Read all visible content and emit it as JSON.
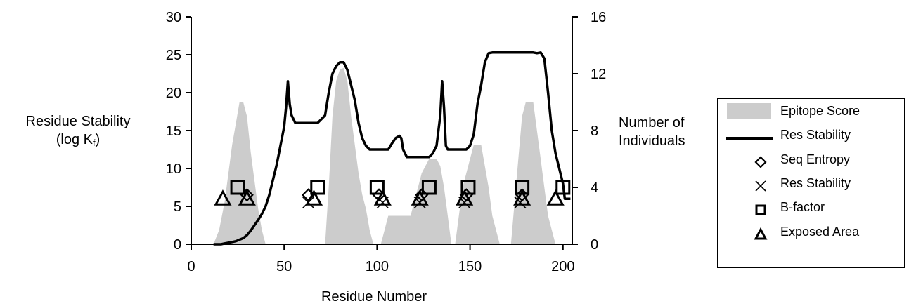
{
  "y_left_title_line1": "Residue Stability",
  "y_left_title_line2": "(log K",
  "y_left_title_sub": "f",
  "y_left_title_end": ")",
  "y_right_title_line1": "Number of",
  "y_right_title_line2": "Individuals",
  "chart_data": {
    "type": "line",
    "xlabel": "Residue Number",
    "x_ticks": [
      0,
      50,
      100,
      150,
      200
    ],
    "y_left_ticks": [
      0,
      5,
      10,
      15,
      20,
      25,
      30
    ],
    "y_right_ticks": [
      0,
      4,
      8,
      12,
      16
    ],
    "xlim": [
      0,
      205
    ],
    "ylim_left": [
      0,
      30
    ],
    "ylim_right": [
      0,
      16
    ],
    "legend_position": "right",
    "colors": {
      "epitope": "#cccccc",
      "line": "#000000"
    },
    "series": [
      {
        "name": "Epitope Score",
        "kind": "area",
        "axis": "right",
        "points": [
          [
            12,
            0
          ],
          [
            15,
            1
          ],
          [
            18,
            3
          ],
          [
            20,
            5
          ],
          [
            22,
            7
          ],
          [
            24,
            8.5
          ],
          [
            26,
            10
          ],
          [
            28,
            10
          ],
          [
            30,
            9
          ],
          [
            32,
            6.5
          ],
          [
            34,
            4.5
          ],
          [
            36,
            2.5
          ],
          [
            38,
            1
          ],
          [
            40,
            0
          ],
          [
            72,
            0
          ],
          [
            74,
            4
          ],
          [
            76,
            9
          ],
          [
            78,
            11.5
          ],
          [
            80,
            12.3
          ],
          [
            82,
            12.4
          ],
          [
            84,
            11.5
          ],
          [
            86,
            9
          ],
          [
            88,
            7
          ],
          [
            90,
            5
          ],
          [
            92,
            3.5
          ],
          [
            94,
            2.5
          ],
          [
            96,
            1
          ],
          [
            98,
            0
          ],
          [
            102,
            0
          ],
          [
            104,
            1
          ],
          [
            106,
            2
          ],
          [
            110,
            2
          ],
          [
            114,
            2
          ],
          [
            118,
            2
          ],
          [
            120,
            3
          ],
          [
            122,
            4
          ],
          [
            124,
            5
          ],
          [
            126,
            5.5
          ],
          [
            128,
            6
          ],
          [
            130,
            6
          ],
          [
            132,
            6
          ],
          [
            134,
            5.5
          ],
          [
            136,
            4
          ],
          [
            138,
            2
          ],
          [
            140,
            0
          ],
          [
            142,
            0
          ],
          [
            144,
            2
          ],
          [
            146,
            4
          ],
          [
            148,
            5
          ],
          [
            150,
            6
          ],
          [
            152,
            7
          ],
          [
            154,
            7
          ],
          [
            156,
            7
          ],
          [
            158,
            5.5
          ],
          [
            160,
            4
          ],
          [
            162,
            2
          ],
          [
            164,
            1
          ],
          [
            166,
            0
          ],
          [
            172,
            0
          ],
          [
            174,
            3
          ],
          [
            176,
            6
          ],
          [
            178,
            9
          ],
          [
            180,
            10
          ],
          [
            182,
            10
          ],
          [
            184,
            10
          ],
          [
            186,
            8
          ],
          [
            188,
            6
          ],
          [
            190,
            4
          ],
          [
            192,
            2
          ],
          [
            194,
            1
          ],
          [
            196,
            0
          ]
        ]
      },
      {
        "name": "Res Stability",
        "kind": "line",
        "axis": "left",
        "points": [
          [
            12,
            0
          ],
          [
            16,
            0
          ],
          [
            18,
            0.1
          ],
          [
            20,
            0.2
          ],
          [
            22,
            0.3
          ],
          [
            24,
            0.4
          ],
          [
            26,
            0.6
          ],
          [
            28,
            0.8
          ],
          [
            30,
            1.2
          ],
          [
            32,
            1.8
          ],
          [
            34,
            2.5
          ],
          [
            36,
            3.2
          ],
          [
            38,
            4
          ],
          [
            40,
            5
          ],
          [
            42,
            6.5
          ],
          [
            44,
            8.5
          ],
          [
            46,
            10.5
          ],
          [
            48,
            13
          ],
          [
            50,
            15.5
          ],
          [
            51,
            18
          ],
          [
            52,
            21.5
          ],
          [
            53,
            18.5
          ],
          [
            54,
            17
          ],
          [
            56,
            16
          ],
          [
            60,
            16
          ],
          [
            64,
            16
          ],
          [
            68,
            16
          ],
          [
            70,
            16.5
          ],
          [
            72,
            17
          ],
          [
            74,
            20
          ],
          [
            76,
            22.5
          ],
          [
            78,
            23.5
          ],
          [
            80,
            24
          ],
          [
            82,
            24
          ],
          [
            84,
            23
          ],
          [
            86,
            21
          ],
          [
            88,
            19
          ],
          [
            90,
            16
          ],
          [
            92,
            14
          ],
          [
            94,
            13
          ],
          [
            96,
            12.5
          ],
          [
            100,
            12.5
          ],
          [
            104,
            12.5
          ],
          [
            106,
            12.5
          ],
          [
            108,
            13.3
          ],
          [
            110,
            14
          ],
          [
            112,
            14.3
          ],
          [
            113,
            14
          ],
          [
            114,
            12.5
          ],
          [
            116,
            11.5
          ],
          [
            118,
            11.5
          ],
          [
            122,
            11.5
          ],
          [
            126,
            11.5
          ],
          [
            128,
            11.5
          ],
          [
            130,
            12
          ],
          [
            132,
            13
          ],
          [
            134,
            17
          ],
          [
            135,
            21.5
          ],
          [
            136,
            18
          ],
          [
            137,
            13
          ],
          [
            138,
            12.5
          ],
          [
            140,
            12.5
          ],
          [
            144,
            12.5
          ],
          [
            148,
            12.5
          ],
          [
            150,
            13
          ],
          [
            152,
            14.5
          ],
          [
            154,
            18.5
          ],
          [
            156,
            21
          ],
          [
            158,
            24
          ],
          [
            160,
            25.2
          ],
          [
            162,
            25.3
          ],
          [
            166,
            25.3
          ],
          [
            172,
            25.3
          ],
          [
            178,
            25.3
          ],
          [
            184,
            25.3
          ],
          [
            186,
            25.2
          ],
          [
            188,
            25.3
          ],
          [
            190,
            24.5
          ],
          [
            192,
            20
          ],
          [
            194,
            15
          ],
          [
            196,
            12
          ],
          [
            198,
            10
          ],
          [
            200,
            8
          ],
          [
            201,
            6
          ],
          [
            204,
            6
          ]
        ]
      },
      {
        "name": "Seq Entropy",
        "kind": "scatter",
        "marker": "diamond",
        "axis": "left",
        "x": [
          30,
          63,
          101,
          124,
          148,
          178
        ],
        "y": [
          6.5,
          6.5,
          6.5,
          6.5,
          6.5,
          6.5
        ]
      },
      {
        "name": "Res Stability",
        "kind": "scatter",
        "marker": "x",
        "axis": "left",
        "x": [
          63,
          103,
          123,
          147,
          177
        ],
        "y": [
          5.5,
          5.5,
          5.5,
          5.5,
          5.5
        ]
      },
      {
        "name": "B-factor",
        "kind": "scatter",
        "marker": "square",
        "axis": "left",
        "x": [
          25,
          68,
          100,
          128,
          149,
          178,
          200
        ],
        "y": [
          7.5,
          7.5,
          7.5,
          7.5,
          7.5,
          7.5,
          7.5
        ]
      },
      {
        "name": "Exposed Area",
        "kind": "scatter",
        "marker": "triangle",
        "axis": "left",
        "x": [
          17,
          30,
          66,
          103,
          123,
          147,
          178,
          196
        ],
        "y": [
          6,
          6,
          6,
          6,
          6,
          6,
          6,
          6
        ]
      }
    ]
  }
}
